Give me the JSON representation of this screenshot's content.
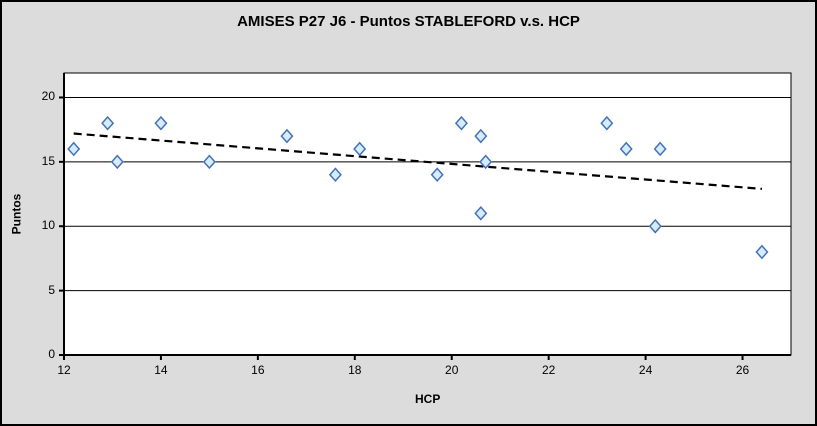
{
  "chart_data": {
    "type": "scatter",
    "title": "AMISES P27 J6 - Puntos STABLEFORD v.s. HCP",
    "xlabel": "HCP",
    "ylabel": "Puntos",
    "xlim": [
      12,
      27
    ],
    "ylim": [
      0,
      21.9
    ],
    "xticks": [
      12,
      14,
      16,
      18,
      20,
      22,
      24,
      26
    ],
    "yticks": [
      0,
      5,
      10,
      15,
      20
    ],
    "grid": "horizontal-only",
    "legend": "none",
    "series": [
      {
        "name": "Puntos STABLEFORD",
        "points": [
          {
            "x": 12.2,
            "y": 16
          },
          {
            "x": 12.9,
            "y": 18
          },
          {
            "x": 13.1,
            "y": 15
          },
          {
            "x": 14.0,
            "y": 18
          },
          {
            "x": 15.0,
            "y": 15
          },
          {
            "x": 16.6,
            "y": 17
          },
          {
            "x": 17.6,
            "y": 14
          },
          {
            "x": 18.1,
            "y": 16
          },
          {
            "x": 19.7,
            "y": 14
          },
          {
            "x": 20.2,
            "y": 18
          },
          {
            "x": 20.6,
            "y": 17
          },
          {
            "x": 20.7,
            "y": 15
          },
          {
            "x": 20.6,
            "y": 11
          },
          {
            "x": 23.2,
            "y": 18
          },
          {
            "x": 23.6,
            "y": 16
          },
          {
            "x": 24.3,
            "y": 16
          },
          {
            "x": 24.2,
            "y": 10
          },
          {
            "x": 26.4,
            "y": 8
          }
        ]
      }
    ],
    "trendline": {
      "type": "linear",
      "style": "dashed",
      "color": "#000000",
      "x1": 12.2,
      "y1": 17.2,
      "x2": 26.4,
      "y2": 12.9
    },
    "marker": {
      "shape": "diamond",
      "fill": "#d6ecfa",
      "stroke": "#4472b8"
    },
    "colors": {
      "chart_bg": "#dcdcdc",
      "plot_bg": "#ffffff",
      "grid": "#000000",
      "axis": "#000000",
      "text": "#000000"
    }
  }
}
